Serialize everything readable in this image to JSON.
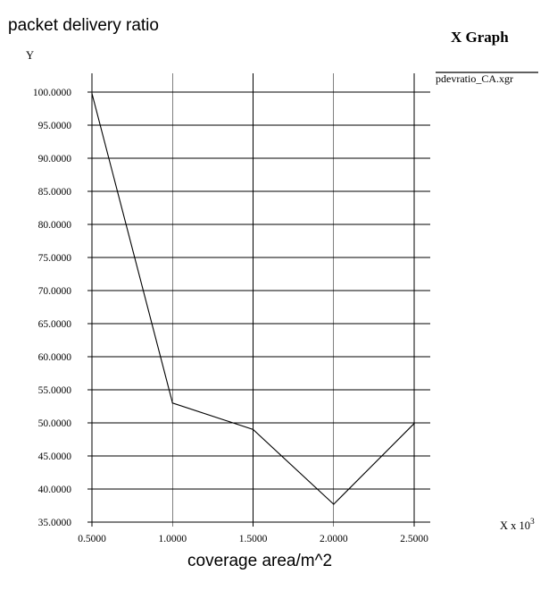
{
  "app": {
    "title": "X Graph"
  },
  "page_title": "packet delivery ratio",
  "chart_data": {
    "type": "line",
    "title": "packet delivery ratio",
    "xlabel": "coverage area/m^2",
    "ylabel": "Y",
    "x_axis_word": "X x 10",
    "x_axis_exponent": "3",
    "x": [
      0.5,
      1.0,
      1.5,
      2.0,
      2.5
    ],
    "x_tick_labels": [
      "0.5000",
      "1.0000",
      "1.5000",
      "2.0000",
      "2.5000"
    ],
    "xlim": [
      0.5,
      2.5
    ],
    "y_ticks": [
      35,
      40,
      45,
      50,
      55,
      60,
      65,
      70,
      75,
      80,
      85,
      90,
      95,
      100
    ],
    "y_tick_labels": [
      "35.0000",
      "40.0000",
      "45.0000",
      "50.0000",
      "55.0000",
      "60.0000",
      "65.0000",
      "70.0000",
      "75.0000",
      "80.0000",
      "85.0000",
      "90.0000",
      "95.0000",
      "100.0000"
    ],
    "ylim": [
      35,
      100
    ],
    "grid": true,
    "legend_position": "top-right",
    "series": [
      {
        "name": "pdevratio_CA.xgr",
        "color": "#000000",
        "values": [
          99.8,
          53.0,
          49.0,
          37.7,
          49.9
        ]
      }
    ]
  }
}
